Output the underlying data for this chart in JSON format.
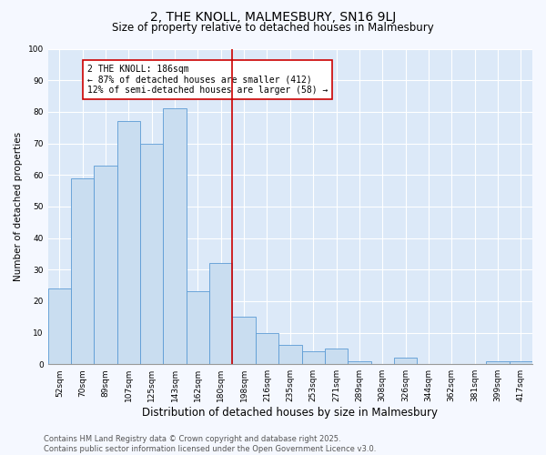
{
  "title": "2, THE KNOLL, MALMESBURY, SN16 9LJ",
  "subtitle": "Size of property relative to detached houses in Malmesbury",
  "xlabel": "Distribution of detached houses by size in Malmesbury",
  "ylabel": "Number of detached properties",
  "categories": [
    "52sqm",
    "70sqm",
    "89sqm",
    "107sqm",
    "125sqm",
    "143sqm",
    "162sqm",
    "180sqm",
    "198sqm",
    "216sqm",
    "235sqm",
    "253sqm",
    "271sqm",
    "289sqm",
    "308sqm",
    "326sqm",
    "344sqm",
    "362sqm",
    "381sqm",
    "399sqm",
    "417sqm"
  ],
  "values": [
    24,
    59,
    63,
    77,
    70,
    81,
    23,
    32,
    15,
    10,
    6,
    4,
    5,
    1,
    0,
    2,
    0,
    0,
    0,
    1,
    1
  ],
  "bar_color": "#c9ddf0",
  "bar_edge_color": "#5b9bd5",
  "highlight_index": 7,
  "highlight_line_color": "#cc0000",
  "annotation_text": "2 THE KNOLL: 186sqm\n← 87% of detached houses are smaller (412)\n12% of semi-detached houses are larger (58) →",
  "annotation_box_color": "#cc0000",
  "ylim": [
    0,
    100
  ],
  "yticks": [
    0,
    10,
    20,
    30,
    40,
    50,
    60,
    70,
    80,
    90,
    100
  ],
  "plot_bg_color": "#dce9f8",
  "fig_bg_color": "#f5f8ff",
  "grid_color": "#ffffff",
  "footer_text": "Contains HM Land Registry data © Crown copyright and database right 2025.\nContains public sector information licensed under the Open Government Licence v3.0.",
  "title_fontsize": 10,
  "subtitle_fontsize": 8.5,
  "xlabel_fontsize": 8.5,
  "ylabel_fontsize": 7.5,
  "tick_fontsize": 6.5,
  "annotation_fontsize": 7,
  "footer_fontsize": 6
}
